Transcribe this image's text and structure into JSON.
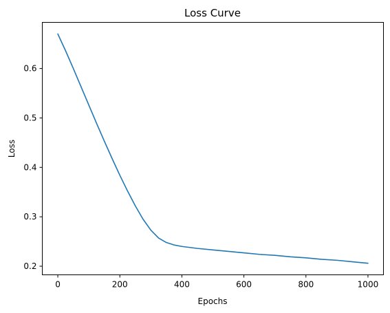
{
  "chart_data": {
    "type": "line",
    "title": "Loss Curve",
    "xlabel": "Epochs",
    "ylabel": "Loss",
    "xlim": [
      -50,
      1050
    ],
    "ylim": [
      0.1826,
      0.6934
    ],
    "xticks": [
      0,
      200,
      400,
      600,
      800,
      1000
    ],
    "yticks": [
      0.2,
      0.3,
      0.4,
      0.5,
      0.6
    ],
    "xtick_labels": [
      "0",
      "200",
      "400",
      "600",
      "800",
      "1000"
    ],
    "ytick_labels": [
      "0.2",
      "0.3",
      "0.4",
      "0.5",
      "0.6"
    ],
    "grid": false,
    "series": [
      {
        "color": "#1f77b4",
        "x": [
          0,
          25,
          50,
          75,
          100,
          125,
          150,
          175,
          200,
          225,
          250,
          275,
          300,
          325,
          350,
          375,
          400,
          450,
          500,
          550,
          600,
          650,
          700,
          750,
          800,
          850,
          900,
          950,
          1000
        ],
        "y": [
          0.67,
          0.636,
          0.6,
          0.563,
          0.526,
          0.489,
          0.453,
          0.418,
          0.384,
          0.352,
          0.322,
          0.295,
          0.273,
          0.257,
          0.248,
          0.243,
          0.24,
          0.236,
          0.233,
          0.23,
          0.227,
          0.224,
          0.222,
          0.219,
          0.217,
          0.214,
          0.212,
          0.209,
          0.206
        ]
      }
    ]
  }
}
